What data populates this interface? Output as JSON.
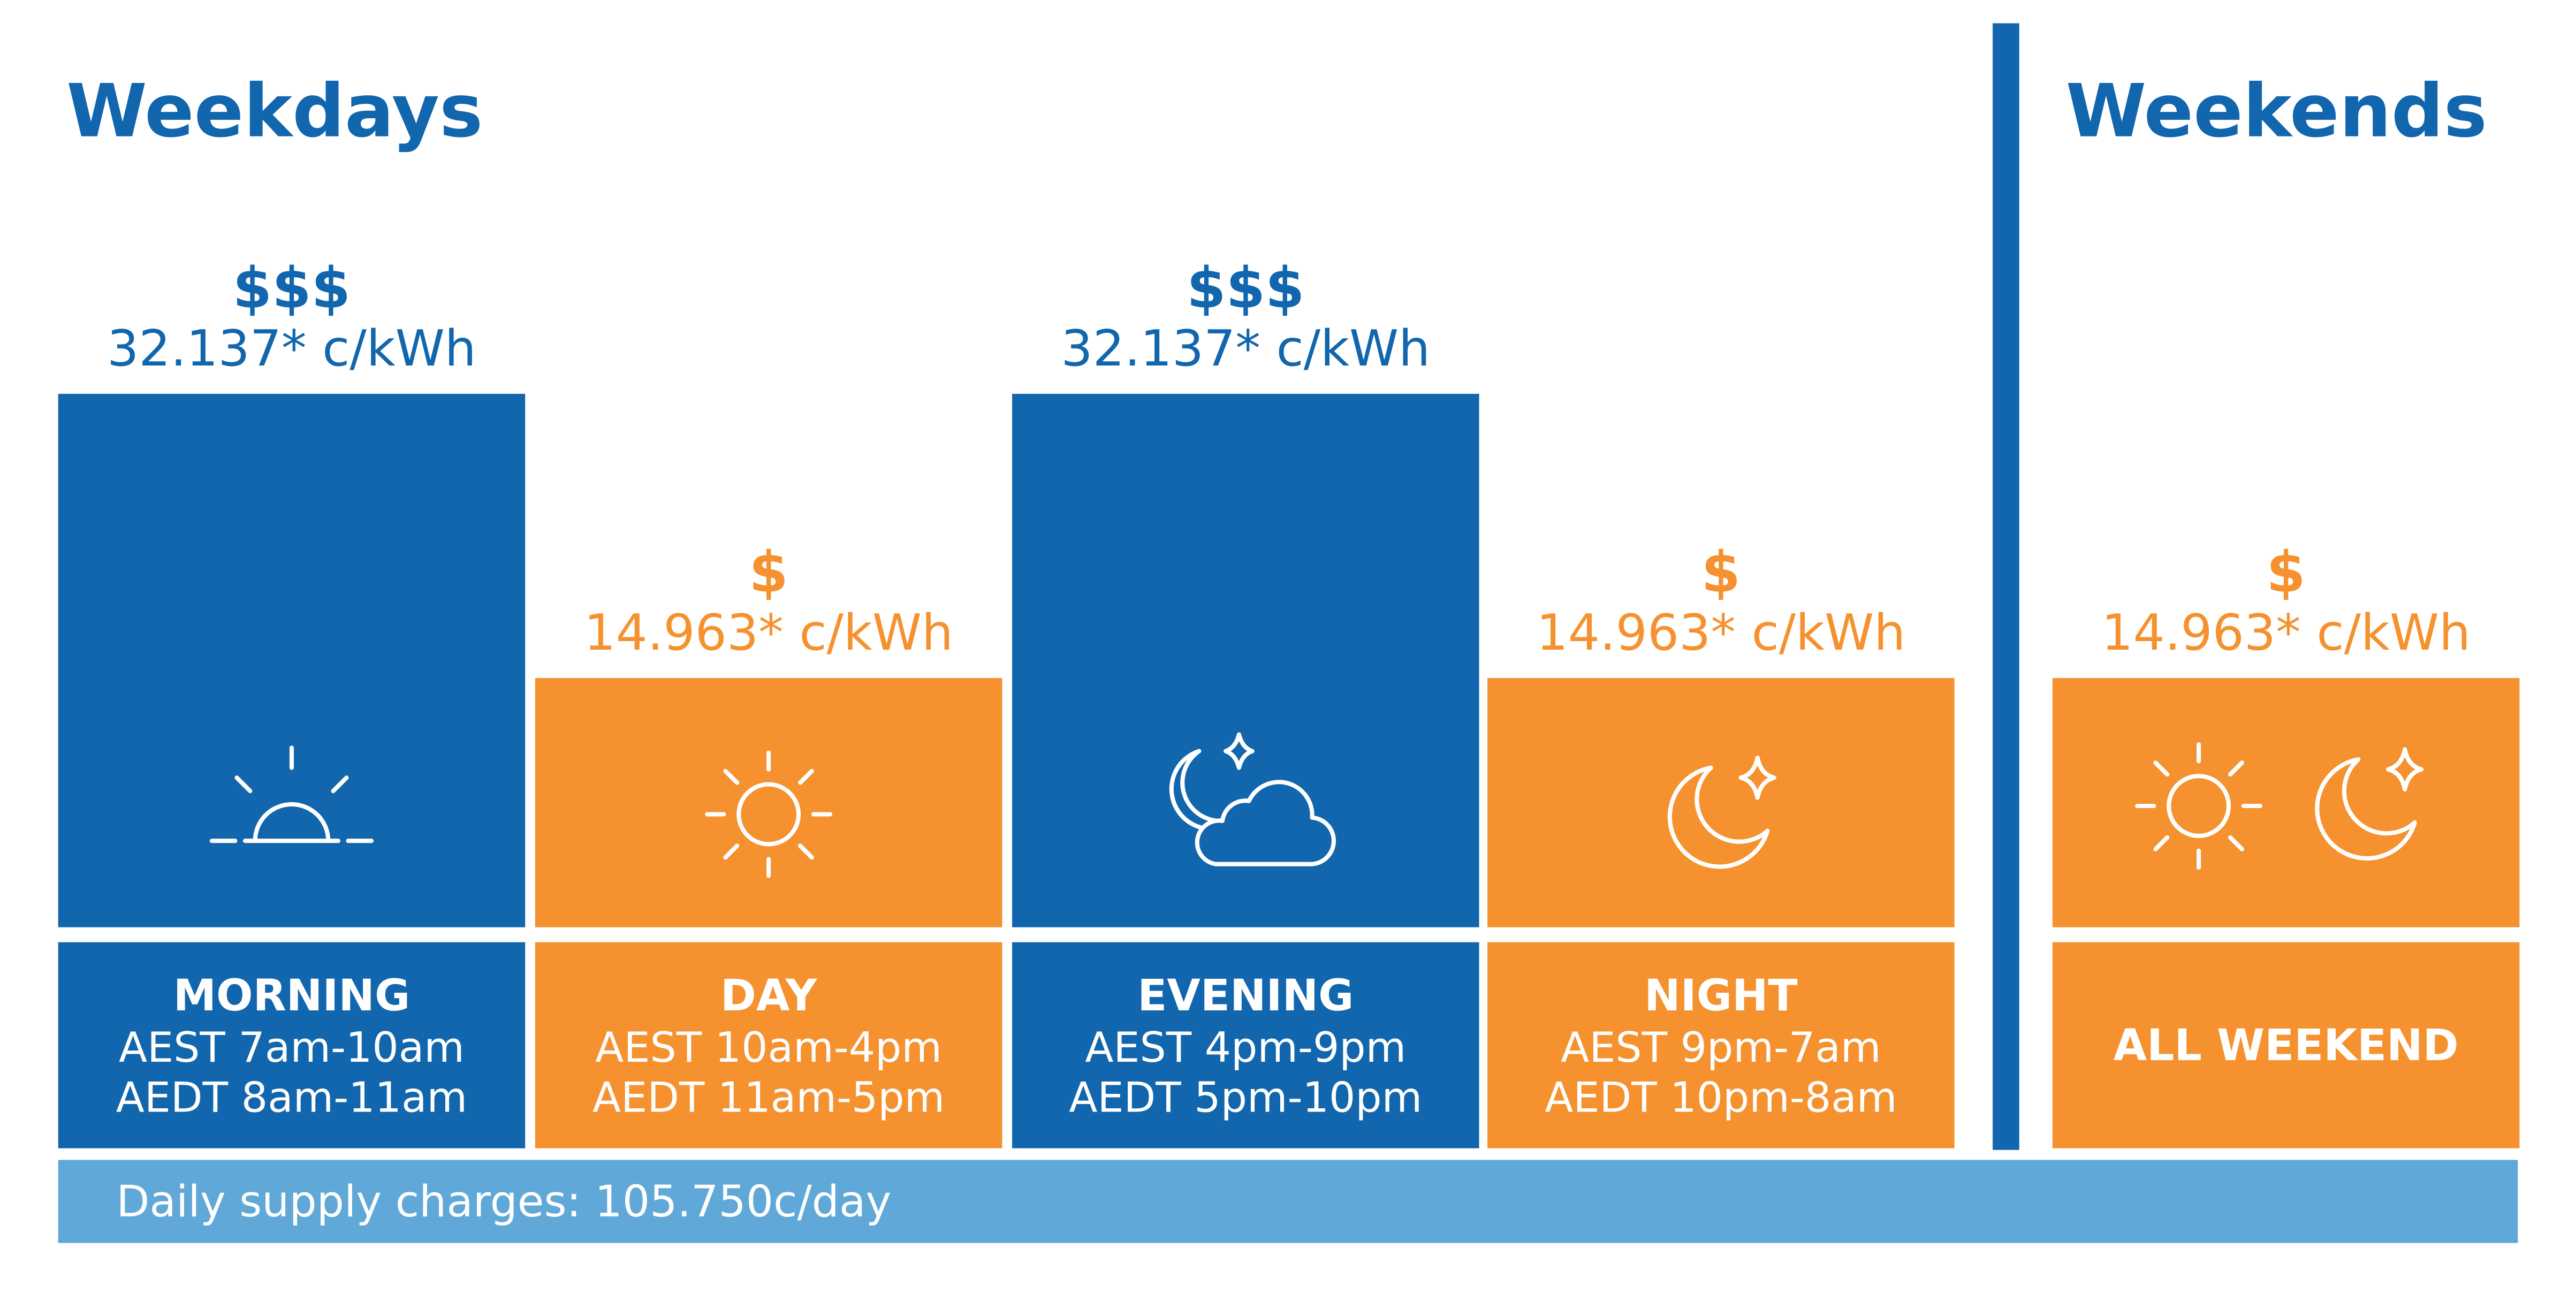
{
  "weekdays": {
    "title": "Weekdays",
    "periods": [
      {
        "cost": "$$$",
        "rate": "32.137* c/kWh",
        "name": "MORNING",
        "aest": "AEST 7am-10am",
        "aedt": "AEDT 8am-11am"
      },
      {
        "cost": "$",
        "rate": "14.963* c/kWh",
        "name": "DAY",
        "aest": "AEST 10am-4pm",
        "aedt": "AEDT 11am-5pm"
      },
      {
        "cost": "$$$",
        "rate": "32.137* c/kWh",
        "name": "EVENING",
        "aest": "AEST 4pm-9pm",
        "aedt": "AEDT 5pm-10pm"
      },
      {
        "cost": "$",
        "rate": "14.963* c/kWh",
        "name": "NIGHT",
        "aest": "AEST 9pm-7am",
        "aedt": "AEDT 10pm-8am"
      }
    ]
  },
  "weekends": {
    "title": "Weekends",
    "cost": "$",
    "rate": "14.963* c/kWh",
    "name": "ALL WEEKEND"
  },
  "footer": "Daily supply charges: 105.750c/day"
}
